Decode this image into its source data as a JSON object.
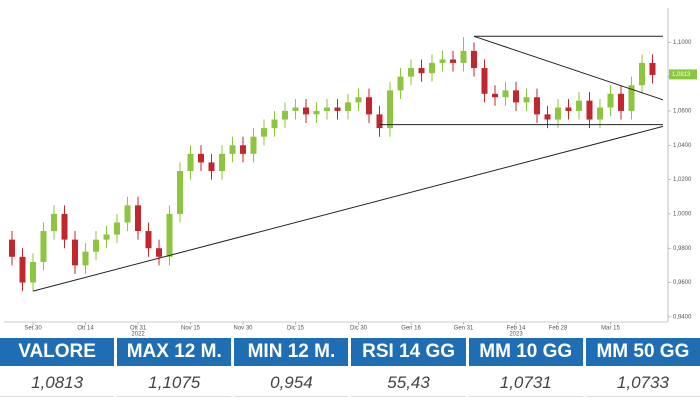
{
  "chart_data": {
    "type": "candlestick",
    "categories": [
      null,
      null,
      "Set 30",
      null,
      null,
      null,
      null,
      "Ott 14",
      null,
      null,
      null,
      null,
      "Ott 31",
      null,
      null,
      null,
      null,
      "Nov 15",
      null,
      null,
      null,
      null,
      "Nov 30",
      null,
      null,
      null,
      null,
      "Dic 15",
      null,
      null,
      null,
      null,
      null,
      "Dic 30",
      null,
      null,
      null,
      null,
      "Gen 16",
      null,
      null,
      null,
      null,
      "Gen 31",
      null,
      null,
      null,
      null,
      "Feb 14",
      null,
      null,
      null,
      "Feb 28",
      null,
      null,
      null,
      null,
      "Mar 15",
      null,
      null,
      null,
      null
    ],
    "years": [
      null,
      null,
      null,
      null,
      null,
      null,
      null,
      null,
      null,
      null,
      null,
      null,
      "2022",
      null,
      null,
      null,
      null,
      null,
      null,
      null,
      null,
      null,
      null,
      null,
      null,
      null,
      null,
      null,
      null,
      null,
      null,
      null,
      null,
      null,
      null,
      null,
      null,
      null,
      null,
      null,
      null,
      null,
      null,
      null,
      null,
      null,
      null,
      null,
      "2023",
      null,
      null,
      null,
      null,
      null,
      null,
      null,
      null,
      null,
      null,
      null,
      null,
      null
    ],
    "open": [
      0.985,
      0.975,
      0.96,
      0.972,
      0.99,
      1.0,
      0.985,
      0.97,
      0.978,
      0.985,
      0.988,
      0.995,
      1.005,
      0.99,
      0.98,
      0.975,
      1.0,
      1.025,
      1.035,
      1.03,
      1.025,
      1.035,
      1.04,
      1.035,
      1.045,
      1.05,
      1.055,
      1.06,
      1.062,
      1.058,
      1.06,
      1.062,
      1.06,
      1.065,
      1.068,
      1.058,
      1.05,
      1.072,
      1.08,
      1.085,
      1.082,
      1.088,
      1.09,
      1.088,
      1.095,
      1.085,
      1.07,
      1.068,
      1.072,
      1.065,
      1.068,
      1.058,
      1.055,
      1.062,
      1.06,
      1.066,
      1.055,
      1.062,
      1.07,
      1.06,
      1.075,
      1.088
    ],
    "high": [
      0.99,
      0.98,
      0.977,
      0.995,
      1.005,
      1.005,
      0.99,
      0.983,
      0.99,
      0.993,
      1.0,
      1.01,
      1.01,
      0.995,
      0.985,
      1.005,
      1.03,
      1.04,
      1.04,
      1.035,
      1.04,
      1.045,
      1.045,
      1.05,
      1.055,
      1.06,
      1.065,
      1.067,
      1.067,
      1.065,
      1.067,
      1.067,
      1.07,
      1.073,
      1.073,
      1.063,
      1.077,
      1.085,
      1.09,
      1.09,
      1.093,
      1.095,
      1.095,
      1.103,
      1.1,
      1.09,
      1.075,
      1.077,
      1.077,
      1.073,
      1.073,
      1.063,
      1.067,
      1.067,
      1.071,
      1.071,
      1.067,
      1.075,
      1.075,
      1.08,
      1.093,
      1.093
    ],
    "low": [
      0.97,
      0.955,
      0.955,
      0.967,
      0.985,
      0.98,
      0.965,
      0.965,
      0.973,
      0.98,
      0.983,
      0.99,
      0.985,
      0.975,
      0.97,
      0.97,
      0.995,
      1.02,
      1.025,
      1.02,
      1.02,
      1.03,
      1.03,
      1.03,
      1.04,
      1.045,
      1.05,
      1.055,
      1.053,
      1.053,
      1.055,
      1.055,
      1.055,
      1.06,
      1.053,
      1.045,
      1.045,
      1.067,
      1.075,
      1.077,
      1.077,
      1.083,
      1.083,
      1.083,
      1.08,
      1.065,
      1.063,
      1.063,
      1.06,
      1.06,
      1.053,
      1.05,
      1.05,
      1.055,
      1.055,
      1.05,
      1.05,
      1.057,
      1.055,
      1.055,
      1.07,
      1.076
    ],
    "close": [
      0.975,
      0.96,
      0.972,
      0.99,
      1.0,
      0.985,
      0.97,
      0.978,
      0.985,
      0.988,
      0.995,
      1.005,
      0.99,
      0.98,
      0.975,
      1.0,
      1.025,
      1.035,
      1.03,
      1.025,
      1.035,
      1.04,
      1.035,
      1.045,
      1.05,
      1.055,
      1.06,
      1.062,
      1.058,
      1.06,
      1.062,
      1.06,
      1.065,
      1.068,
      1.058,
      1.05,
      1.072,
      1.08,
      1.085,
      1.082,
      1.088,
      1.09,
      1.088,
      1.095,
      1.085,
      1.07,
      1.068,
      1.072,
      1.065,
      1.068,
      1.058,
      1.055,
      1.062,
      1.06,
      1.066,
      1.055,
      1.062,
      1.07,
      1.06,
      1.075,
      1.088,
      1.081
    ],
    "up_color": "#8cc63e",
    "down_color": "#c1272d",
    "ylim": [
      0.937,
      1.12
    ],
    "yticks": [
      {
        "value": 0.94,
        "label": "0,9400"
      },
      {
        "value": 0.96,
        "label": "0,9600"
      },
      {
        "value": 0.98,
        "label": "0,9800"
      },
      {
        "value": 1.0,
        "label": "1,0000"
      },
      {
        "value": 1.02,
        "label": "1,0200"
      },
      {
        "value": 1.04,
        "label": "1,0400"
      },
      {
        "value": 1.06,
        "label": "1,0600"
      },
      {
        "value": 1.08,
        "label": "1,0800"
      },
      {
        "value": 1.1,
        "label": "1,1000"
      }
    ],
    "last_price": {
      "value": 1.0813,
      "label": "1,0813"
    },
    "trendlines": [
      {
        "from": [
          2,
          0.955
        ],
        "to": [
          62,
          1.051
        ]
      },
      {
        "from": [
          44,
          1.1035
        ],
        "to": [
          62,
          1.1035
        ]
      },
      {
        "from": [
          44,
          1.1035
        ],
        "to": [
          62,
          1.0665
        ]
      },
      {
        "from": [
          35,
          1.052
        ],
        "to": [
          62,
          1.052
        ]
      }
    ]
  },
  "table": {
    "headers": [
      "VALORE",
      "MAX 12 M.",
      "MIN 12 M.",
      "RSI 14 GG",
      "MM 10 GG",
      "MM 50 GG"
    ],
    "values": [
      "1,0813",
      "1,1075",
      "0,954",
      "55,43",
      "1,0731",
      "1,0733"
    ]
  }
}
